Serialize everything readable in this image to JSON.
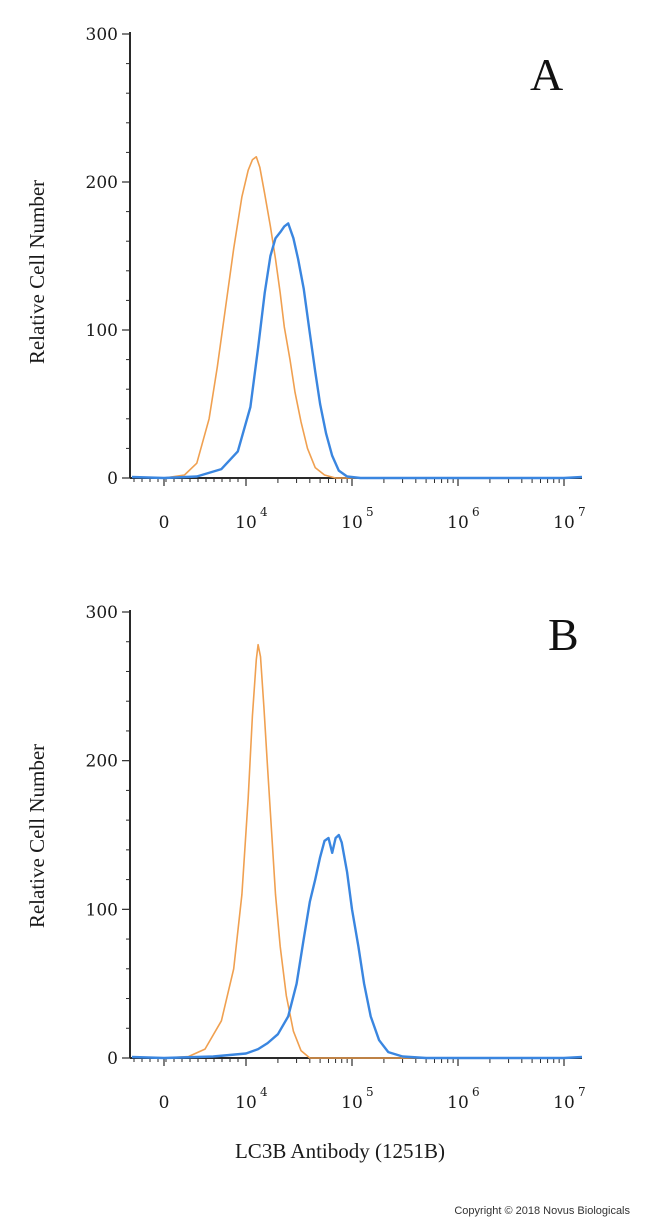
{
  "chart_data": [
    {
      "type": "line",
      "panel_label": "A",
      "ylabel": "Relative Cell Number",
      "xlabel": "",
      "yticks": [
        0,
        100,
        200,
        300
      ],
      "ylim": [
        0,
        300
      ],
      "xticks": [
        {
          "base": "0",
          "exp": ""
        },
        {
          "base": "10",
          "exp": "4"
        },
        {
          "base": "10",
          "exp": "5"
        },
        {
          "base": "10",
          "exp": "6"
        },
        {
          "base": "10",
          "exp": "7"
        }
      ],
      "x_scale": "biexponential",
      "series": [
        {
          "color": "#f0a050",
          "points": [
            [
              0,
              0
            ],
            [
              2500,
              2
            ],
            [
              4000,
              10
            ],
            [
              5500,
              40
            ],
            [
              6500,
              75
            ],
            [
              7500,
              115
            ],
            [
              8500,
              155
            ],
            [
              9500,
              190
            ],
            [
              10500,
              208
            ],
            [
              11500,
              215
            ],
            [
              12500,
              217
            ],
            [
              13500,
              210
            ],
            [
              15000,
              192
            ],
            [
              17000,
              170
            ],
            [
              19000,
              148
            ],
            [
              21000,
              125
            ],
            [
              23000,
              102
            ],
            [
              26000,
              80
            ],
            [
              29000,
              58
            ],
            [
              33000,
              38
            ],
            [
              38000,
              20
            ],
            [
              45000,
              7
            ],
            [
              55000,
              2
            ],
            [
              70000,
              0
            ],
            [
              10000000,
              0
            ]
          ]
        },
        {
          "color": "#3a86e0",
          "points": [
            [
              0,
              0
            ],
            [
              4000,
              1
            ],
            [
              7000,
              6
            ],
            [
              9000,
              18
            ],
            [
              11000,
              48
            ],
            [
              13000,
              88
            ],
            [
              15000,
              125
            ],
            [
              17000,
              150
            ],
            [
              19000,
              162
            ],
            [
              21000,
              166
            ],
            [
              23000,
              170
            ],
            [
              25000,
              172
            ],
            [
              28000,
              162
            ],
            [
              31000,
              148
            ],
            [
              35000,
              128
            ],
            [
              40000,
              98
            ],
            [
              45000,
              72
            ],
            [
              50000,
              50
            ],
            [
              57000,
              30
            ],
            [
              65000,
              15
            ],
            [
              75000,
              5
            ],
            [
              90000,
              1
            ],
            [
              120000,
              0
            ],
            [
              10000000,
              0
            ]
          ]
        }
      ]
    },
    {
      "type": "line",
      "panel_label": "B",
      "ylabel": "Relative Cell Number",
      "xlabel": "LC3B Antibody (1251B)",
      "yticks": [
        0,
        100,
        200,
        300
      ],
      "ylim": [
        0,
        300
      ],
      "xticks": [
        {
          "base": "0",
          "exp": ""
        },
        {
          "base": "10",
          "exp": "4"
        },
        {
          "base": "10",
          "exp": "5"
        },
        {
          "base": "10",
          "exp": "6"
        },
        {
          "base": "10",
          "exp": "7"
        }
      ],
      "x_scale": "biexponential",
      "series": [
        {
          "color": "#f0a050",
          "points": [
            [
              0,
              0
            ],
            [
              3000,
              1
            ],
            [
              5000,
              6
            ],
            [
              7000,
              25
            ],
            [
              8500,
              60
            ],
            [
              9500,
              110
            ],
            [
              10500,
              175
            ],
            [
              11500,
              230
            ],
            [
              12500,
              268
            ],
            [
              13000,
              278
            ],
            [
              13700,
              270
            ],
            [
              14800,
              235
            ],
            [
              16000,
              195
            ],
            [
              17500,
              150
            ],
            [
              19000,
              110
            ],
            [
              21000,
              75
            ],
            [
              24000,
              42
            ],
            [
              28000,
              18
            ],
            [
              33000,
              5
            ],
            [
              40000,
              0
            ],
            [
              10000000,
              0
            ]
          ]
        },
        {
          "color": "#3a86e0",
          "points": [
            [
              0,
              0
            ],
            [
              6000,
              1
            ],
            [
              10000,
              3
            ],
            [
              13000,
              6
            ],
            [
              16000,
              10
            ],
            [
              20000,
              16
            ],
            [
              25000,
              28
            ],
            [
              30000,
              50
            ],
            [
              35000,
              80
            ],
            [
              40000,
              105
            ],
            [
              45000,
              120
            ],
            [
              50000,
              135
            ],
            [
              55000,
              146
            ],
            [
              60000,
              148
            ],
            [
              65000,
              138
            ],
            [
              70000,
              148
            ],
            [
              75000,
              150
            ],
            [
              80000,
              145
            ],
            [
              90000,
              125
            ],
            [
              100000,
              100
            ],
            [
              115000,
              75
            ],
            [
              130000,
              50
            ],
            [
              150000,
              28
            ],
            [
              180000,
              12
            ],
            [
              220000,
              4
            ],
            [
              300000,
              1
            ],
            [
              500000,
              0
            ],
            [
              10000000,
              0
            ]
          ]
        }
      ]
    }
  ],
  "copyright": "Copyright © 2018 Novus Biologicals"
}
